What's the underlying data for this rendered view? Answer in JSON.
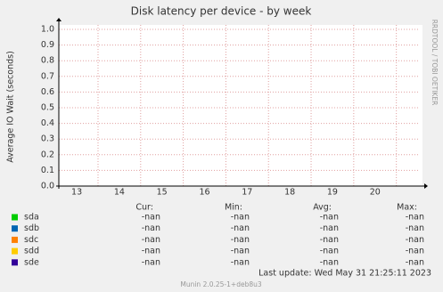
{
  "chart_data": {
    "type": "line",
    "title": "Disk latency per device - by week",
    "y_label": "Average IO Wait (seconds)",
    "watermark": "RRDTOOL / TOBI OETIKER",
    "x": [],
    "xlim": [
      12.58,
      21.03
    ],
    "xticks": [
      13,
      14,
      15,
      16,
      17,
      18,
      19,
      20
    ],
    "xgrid": [
      13.5,
      14.5,
      15.5,
      16.5,
      17.5,
      18.5,
      19.5,
      20.5
    ],
    "ylim": [
      0,
      1.0
    ],
    "yticks": [
      {
        "value": 0,
        "label": "0.0"
      },
      {
        "value": 0.1,
        "label": "0.1"
      },
      {
        "value": 0.2,
        "label": "0.2"
      },
      {
        "value": 0.3,
        "label": "0.3"
      },
      {
        "value": 0.4,
        "label": "0.4"
      },
      {
        "value": 0.5,
        "label": "0.5"
      },
      {
        "value": 0.6,
        "label": "0.6"
      },
      {
        "value": 0.7,
        "label": "0.7"
      },
      {
        "value": 0.8,
        "label": "0.8"
      },
      {
        "value": 0.9,
        "label": "0.9"
      },
      {
        "value": 1.0,
        "label": "1.0"
      }
    ],
    "grid": true,
    "grid_color": "#e0a0a0",
    "stat_headers": [
      "Cur:",
      "Min:",
      "Avg:",
      "Max:"
    ],
    "series": [
      {
        "name": "sda",
        "color": "#00cc00",
        "values": [],
        "stats": [
          "-nan",
          "-nan",
          "-nan",
          "-nan"
        ]
      },
      {
        "name": "sdb",
        "color": "#0066b3",
        "values": [],
        "stats": [
          "-nan",
          "-nan",
          "-nan",
          "-nan"
        ]
      },
      {
        "name": "sdc",
        "color": "#ff8000",
        "values": [],
        "stats": [
          "-nan",
          "-nan",
          "-nan",
          "-nan"
        ]
      },
      {
        "name": "sdd",
        "color": "#ffcc00",
        "values": [],
        "stats": [
          "-nan",
          "-nan",
          "-nan",
          "-nan"
        ]
      },
      {
        "name": "sde",
        "color": "#330099",
        "values": [],
        "stats": [
          "-nan",
          "-nan",
          "-nan",
          "-nan"
        ]
      }
    ],
    "last_update": "Last update:  Wed May 31 21:25:11 2023",
    "footer": "Munin 2.0.25-1+deb8u3"
  }
}
